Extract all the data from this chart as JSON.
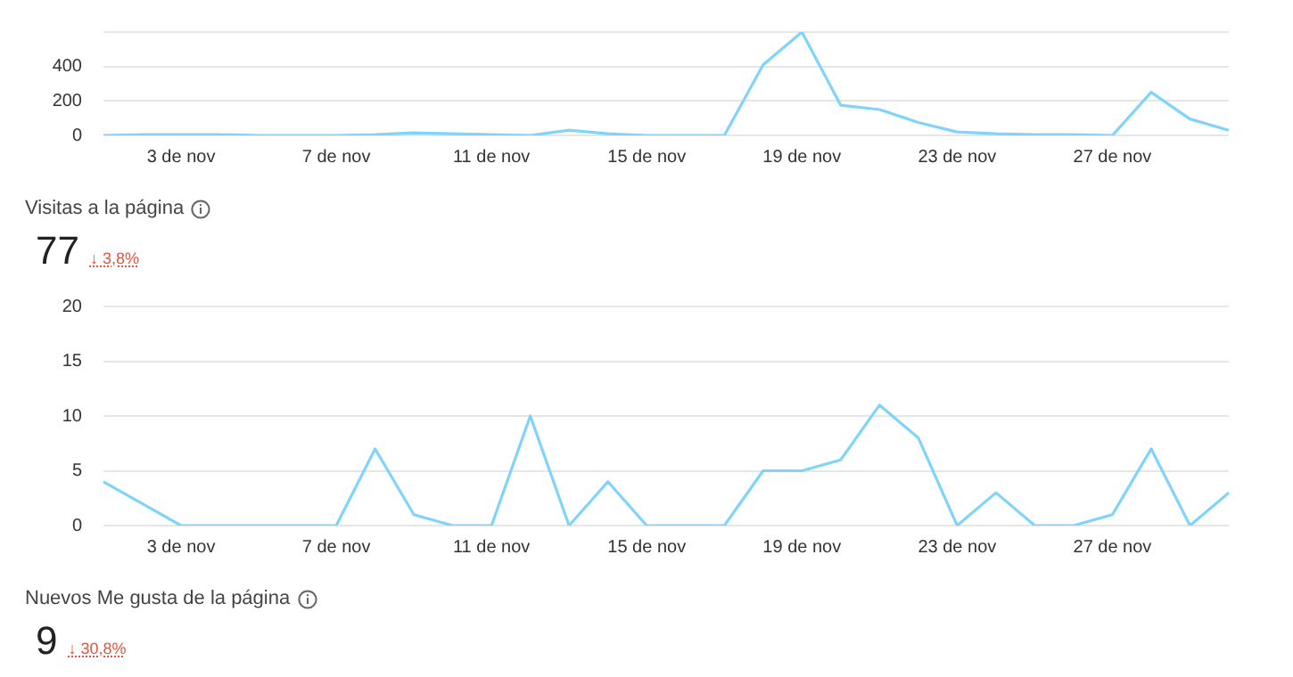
{
  "chart_data": [
    {
      "type": "line",
      "categories": [
        null,
        null,
        "3 de nov",
        null,
        null,
        null,
        "7 de nov",
        null,
        null,
        null,
        "11 de nov",
        null,
        null,
        null,
        "15 de nov",
        null,
        null,
        null,
        "19 de nov",
        null,
        null,
        null,
        "23 de nov",
        null,
        null,
        null,
        "27 de nov",
        null,
        null,
        null
      ],
      "series": [
        {
          "color": "#80d4fb",
          "values": [
            0,
            5,
            5,
            5,
            0,
            0,
            0,
            5,
            15,
            10,
            5,
            0,
            30,
            10,
            0,
            0,
            0,
            410,
            600,
            175,
            150,
            75,
            20,
            10,
            5,
            5,
            0,
            250,
            95,
            30
          ]
        }
      ],
      "ylim": [
        0,
        600
      ],
      "yticks": [
        0,
        200,
        400,
        {
          "value": 600,
          "label": null
        }
      ],
      "grid": "y",
      "legend": false,
      "marker": "none"
    },
    {
      "type": "line",
      "title": "Visitas a la página",
      "annotations": [
        "77",
        "↓ 3,8%"
      ],
      "categories": [
        null,
        null,
        "3 de nov",
        null,
        null,
        null,
        "7 de nov",
        null,
        null,
        null,
        "11 de nov",
        null,
        null,
        null,
        "15 de nov",
        null,
        null,
        null,
        "19 de nov",
        null,
        null,
        null,
        "23 de nov",
        null,
        null,
        null,
        "27 de nov",
        null,
        null,
        null
      ],
      "series": [
        {
          "color": "#80d4fb",
          "values": [
            4,
            2,
            0,
            0,
            0,
            0,
            0,
            7,
            1,
            0,
            0,
            10,
            0,
            4,
            0,
            0,
            0,
            5,
            5,
            6,
            11,
            8,
            0,
            3,
            0,
            0,
            1,
            7,
            0,
            3
          ]
        }
      ],
      "ylim": [
        0,
        20
      ],
      "yticks": [
        0,
        5,
        10,
        15,
        20
      ],
      "grid": "y",
      "legend": false,
      "marker": "none"
    },
    {
      "type": "other",
      "title": "Nuevos Me gusta de la página",
      "annotations": [
        "9",
        "↓ 30,8%"
      ]
    }
  ]
}
